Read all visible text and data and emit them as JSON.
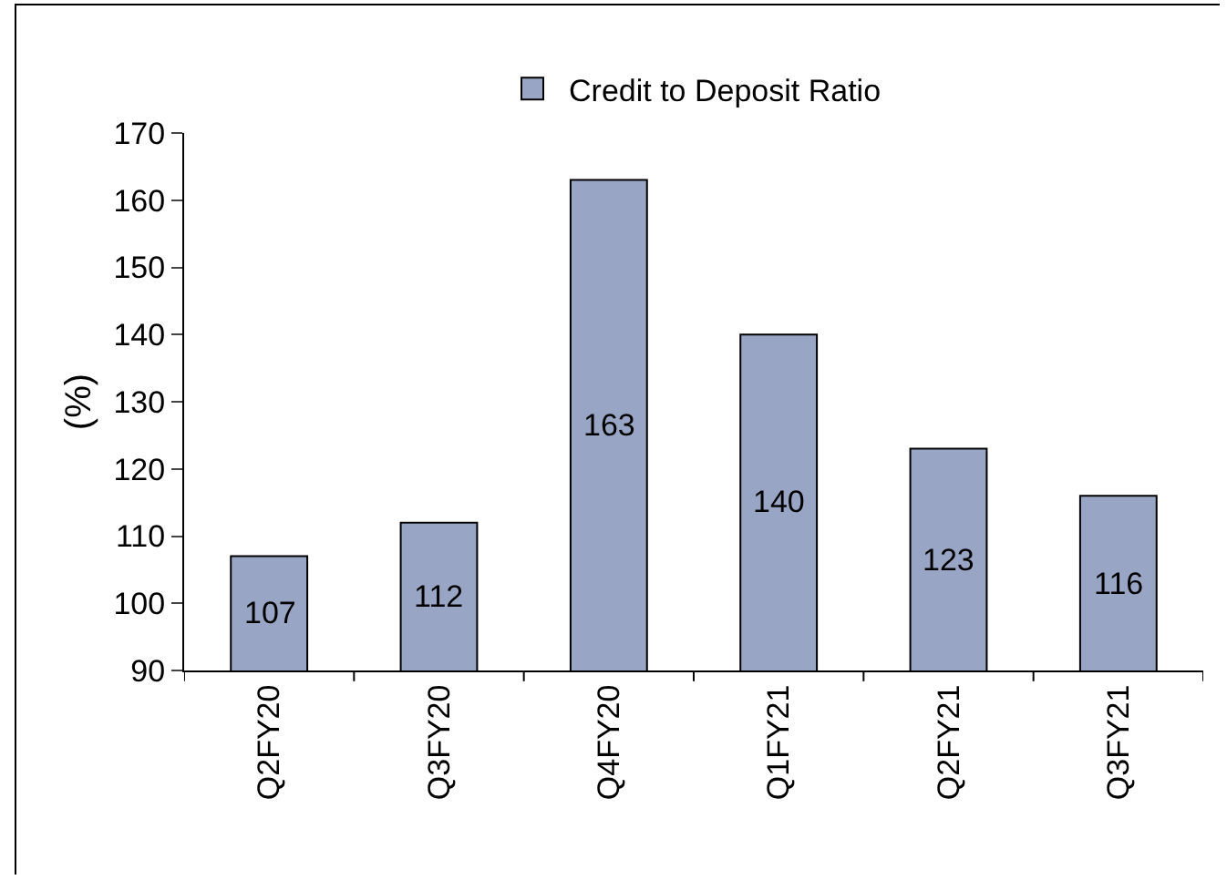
{
  "chart_data": {
    "type": "bar",
    "categories": [
      "Q2FY20",
      "Q3FY20",
      "Q4FY20",
      "Q1FY21",
      "Q2FY21",
      "Q3FY21"
    ],
    "series": [
      {
        "name": "Credit to Deposit Ratio",
        "color": "#99a5c4",
        "values": [
          107,
          112,
          163,
          140,
          123,
          116
        ]
      }
    ],
    "ylabel": "(%)",
    "ylim": [
      90,
      170
    ],
    "yticks": [
      90,
      100,
      110,
      120,
      130,
      140,
      150,
      160,
      170
    ],
    "data_labels": true,
    "grid": false,
    "legend": "top"
  }
}
